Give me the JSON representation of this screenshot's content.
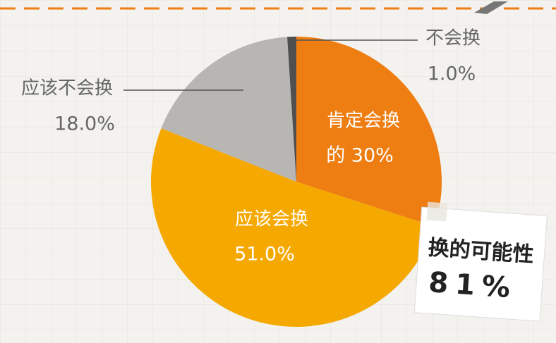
{
  "chart_data": {
    "type": "pie",
    "categories": [
      "肯定会换",
      "应该会换",
      "应该不会换",
      "不会换"
    ],
    "values": [
      30,
      51,
      18,
      1
    ],
    "value_labels": [
      "的 30%",
      "51.0%",
      "18.0%",
      "1.0%"
    ],
    "colors": [
      "#ee7d12",
      "#f5a800",
      "#b8b6b3",
      "#4f4f4f"
    ],
    "annotation": {
      "title": "换的可能性",
      "label": "81%"
    }
  }
}
